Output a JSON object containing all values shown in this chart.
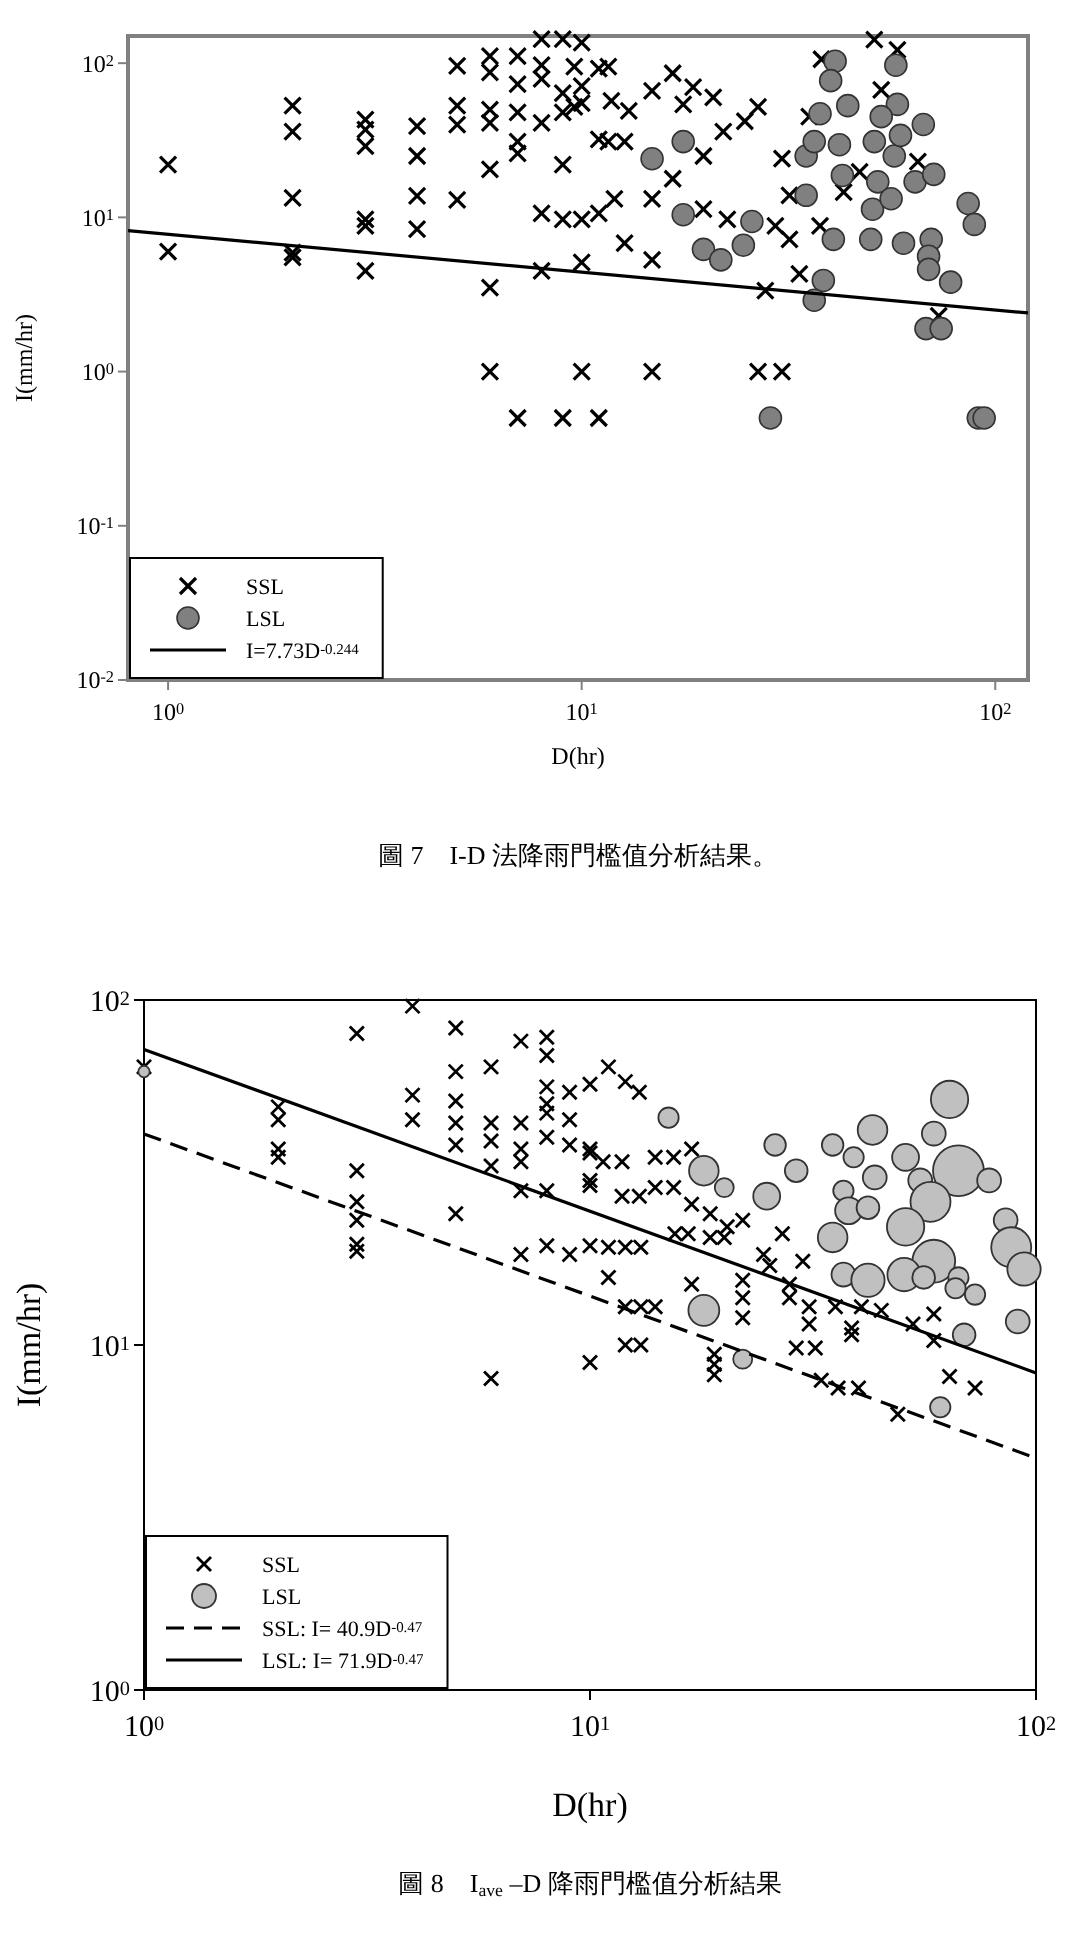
{
  "chart_data": [
    {
      "type": "scatter",
      "xlabel": "D(hr)",
      "ylabel": "I(mm/hr)",
      "log": "xy",
      "legend": "bottom left",
      "xlim": [
        0.8,
        120
      ],
      "ylim": [
        0.01,
        150
      ],
      "xticks": [
        {
          "value": 1,
          "label": "10$^{0}$"
        },
        {
          "value": 10,
          "label": "10$^{1}$"
        },
        {
          "value": 100,
          "label": "10$^{2}$"
        }
      ],
      "yticks": [
        {
          "value": 0.01,
          "label": "10$^{-2}$"
        },
        {
          "value": 0.1,
          "label": "10$^{-1}$"
        },
        {
          "value": 1,
          "label": "10$^{0}$"
        },
        {
          "value": 10,
          "label": "10$^{1}$"
        },
        {
          "value": 100,
          "label": "10$^{2}$"
        }
      ],
      "annotations": [
        "圖 7　I-D 法降雨門檻值分析結果。"
      ],
      "series": [
        {
          "name": "SSL",
          "marker": "cross",
          "color": "#000000",
          "x": [
            1,
            1,
            2,
            2,
            2,
            2,
            2,
            3,
            3,
            3,
            3,
            3,
            3,
            4,
            4,
            4,
            4,
            5,
            5,
            5,
            5,
            6,
            6,
            6,
            6,
            6,
            6,
            6,
            7,
            7,
            7,
            7,
            7,
            7,
            8,
            8,
            8,
            8,
            8,
            8,
            9,
            9,
            9,
            9,
            9,
            9,
            10,
            10,
            10,
            10,
            10,
            10,
            11,
            11,
            11,
            11,
            9.6,
            9.6,
            11.6,
            11.6,
            12.7,
            11.8,
            13,
            14.8,
            16.6,
            18.6,
            20.8,
            17.6,
            26.7,
            24.8,
            22,
            19.7,
            16.6,
            14.8,
            12,
            19.7,
            22.5,
            12.7,
            14.8,
            30.5,
            31.8,
            29.4,
            31.8,
            37.7,
            33.6,
            27.8,
            43,
            47,
            51,
            58,
            53,
            38,
            35.5,
            65,
            73,
            14.8,
            26.7,
            30.5
          ],
          "values": [
            22,
            6,
            53,
            36,
            13.4,
            5.9,
            5.5,
            43,
            37,
            29,
            9.7,
            8.8,
            4.5,
            39,
            25,
            13.8,
            8.4,
            96,
            53,
            40,
            13,
            111,
            87,
            50,
            41,
            20.5,
            3.5,
            1,
            111,
            73,
            48,
            31,
            26,
            0.5,
            143,
            97,
            79,
            41,
            10.6,
            4.5,
            143,
            64,
            48,
            22,
            9.7,
            0.5,
            136,
            71,
            55,
            9.7,
            5.1,
            1,
            92,
            32,
            10.6,
            0.5,
            95,
            52,
            95,
            31,
            31,
            57,
            49,
            66,
            86,
            70,
            60,
            54,
            52,
            42,
            36,
            25,
            17.8,
            13.2,
            13.2,
            11.3,
            9.7,
            6.8,
            5.3,
            24,
            13.9,
            8.8,
            7.2,
            8.8,
            4.3,
            3.35,
            14.6,
            19.7,
            142,
            122,
            67,
            106,
            45,
            23,
            2.3,
            1,
            1,
            1
          ]
        },
        {
          "name": "LSL",
          "marker": "circle",
          "color": "#808080",
          "x": [
            14.8,
            17.6,
            17.6,
            19.7,
            21.7,
            24.6,
            25.8,
            28.6,
            34.9,
            34.9,
            36.5,
            38.4,
            36.5,
            40.6,
            41,
            40,
            44,
            37.7,
            42,
            42.7,
            50,
            50.5,
            51,
            52,
            56,
            57,
            58,
            57.5,
            53,
            59,
            64,
            67,
            71,
            60,
            70,
            69,
            69,
            78,
            68,
            74,
            86,
            89,
            91,
            94
          ],
          "values": [
            24,
            31,
            10.4,
            6.2,
            5.3,
            6.6,
            9.4,
            0.5,
            25,
            13.9,
            31,
            3.9,
            2.9,
            7.2,
            103,
            77,
            53,
            47,
            29.6,
            18.7,
            7.2,
            11.3,
            31,
            17,
            13.2,
            25,
            54,
            97,
            45,
            34,
            17,
            40,
            19,
            6.8,
            7.2,
            5.6,
            4.6,
            3.8,
            1.9,
            1.9,
            12.3,
            9,
            0.5,
            0.5
          ]
        },
        {
          "name": "I=7.73D$^{-0.244}$",
          "type": "line",
          "line_style": "solid",
          "color": "#000000",
          "x": [
            0.8,
            120
          ],
          "values": [
            8.2,
            2.4
          ]
        }
      ]
    },
    {
      "type": "scatter",
      "xlabel": "D(hr)",
      "ylabel": "I(mm/hr)",
      "log": "xy",
      "legend": "bottom left",
      "xlim": [
        1,
        100
      ],
      "ylim": [
        1,
        100
      ],
      "xticks": [
        {
          "value": 1,
          "label": "10$^{0}$"
        },
        {
          "value": 10,
          "label": "10$^{1}$"
        },
        {
          "value": 100,
          "label": "10$^{2}$"
        }
      ],
      "yticks": [
        {
          "value": 1,
          "label": "10$^{0}$"
        },
        {
          "value": 10,
          "label": "10$^{1}$"
        },
        {
          "value": 100,
          "label": "10$^{2}$"
        }
      ],
      "annotations": [
        "圖 8　I$_{ave}$ –D 降雨門檻值分析結果"
      ],
      "series": [
        {
          "name": "SSL",
          "marker": "cross",
          "color": "#000000",
          "x": [
            1,
            2,
            2,
            2,
            2,
            3,
            3,
            3,
            3,
            3,
            3,
            4,
            4,
            4,
            5,
            5,
            5,
            5,
            5,
            5,
            6,
            6,
            6,
            6,
            6,
            7,
            7,
            7,
            7,
            7,
            7,
            8,
            8,
            8,
            8,
            8,
            8,
            8,
            8,
            9,
            9,
            9,
            9,
            10,
            10,
            10,
            10,
            10,
            11,
            12,
            12.9,
            10,
            10.7,
            11.8,
            10,
            11.8,
            12.9,
            11,
            12,
            13,
            11,
            12,
            13,
            14,
            12,
            13,
            14,
            15.4,
            14,
            15.4,
            16.9,
            16.9,
            16.9,
            15.5,
            16.6,
            18.6,
            20.3,
            22,
            18.6,
            20,
            22,
            22,
            22,
            19,
            19,
            19,
            27,
            24.5,
            25.3,
            30,
            28,
            28,
            29,
            32,
            31,
            31,
            35.5,
            38.6,
            40.6,
            38.6,
            33,
            36,
            40,
            45,
            53,
            59,
            59,
            64,
            73,
            49
          ],
          "values": [
            64,
            49,
            45,
            37,
            35,
            80,
            32,
            26,
            23,
            19.6,
            18.7,
            96,
            53,
            45,
            83,
            62,
            51,
            44,
            38,
            24,
            64,
            44,
            39,
            33,
            8,
            76,
            44,
            37,
            34,
            28,
            18.3,
            78,
            69,
            56,
            50,
            47,
            40,
            28,
            19.4,
            54,
            45,
            38,
            18.3,
            57,
            37,
            29,
            19.4,
            8.9,
            64,
            58,
            54,
            36,
            34,
            34,
            30,
            27,
            27,
            19.2,
            19.2,
            19.2,
            15.7,
            12.9,
            12.9,
            12.9,
            10,
            10,
            35,
            35,
            28.6,
            28.6,
            37,
            25.6,
            15,
            21,
            21,
            24,
            22,
            23,
            20.5,
            20.5,
            15.4,
            13.7,
            12,
            9.4,
            8.8,
            8.2,
            21,
            18.3,
            17,
            17.5,
            15,
            13.7,
            9.8,
            9.8,
            12.9,
            11.5,
            12.9,
            11.2,
            12.9,
            10.7,
            7.9,
            7.5,
            7.5,
            12.6,
            11.5,
            12.3,
            10.3,
            8.1,
            7.5,
            6.3
          ]
        },
        {
          "name": "LSL",
          "type": "bubble",
          "color": "#c0c0c0",
          "x": [
            1,
            15,
            18,
            20,
            24.9,
            26,
            29,
            18,
            22,
            35,
            39,
            43,
            35,
            37,
            38,
            42,
            43.5,
            37,
            42,
            51,
            55,
            59,
            64,
            67,
            58,
            51,
            59,
            50.6,
            56,
            67,
            73,
            66,
            78.5,
            85.5,
            88,
            94,
            91,
            69,
            61
          ],
          "values": [
            62,
            45.6,
            32,
            28.6,
            27,
            38,
            32,
            12.6,
            9.1,
            38,
            35,
            42,
            20.5,
            28,
            24.5,
            25,
            30.6,
            16,
            15.4,
            35,
            30,
            41,
            51.5,
            32,
            26,
            22,
            17.5,
            16,
            15.7,
            15.7,
            14,
            14.6,
            30,
            23,
            19.2,
            16.6,
            11.7,
            10.7,
            6.6
          ],
          "sizes": [
            0.05,
            0.16,
            0.34,
            0.14,
            0.28,
            0.18,
            0.2,
            0.37,
            0.14,
            0.18,
            0.16,
            0.34,
            0.34,
            0.16,
            0.28,
            0.2,
            0.22,
            0.22,
            0.43,
            0.28,
            0.22,
            0.22,
            0.54,
            1,
            0.62,
            0.54,
            0.71,
            0.43,
            0.2,
            0.16,
            0.16,
            0.16,
            0.22,
            0.22,
            0.62,
            0.43,
            0.22,
            0.2,
            0.16
          ]
        },
        {
          "name": "SSL: I= 40.9D$^{-0.47}$",
          "type": "line",
          "line_style": "dashed",
          "color": "#000000",
          "x": [
            1,
            100
          ],
          "values": [
            40.9,
            4.7
          ]
        },
        {
          "name": "LSL: I= 71.9D$^{-0.47}$",
          "type": "line",
          "line_style": "solid",
          "color": "#000000",
          "x": [
            1,
            100
          ],
          "values": [
            71.9,
            8.3
          ]
        }
      ]
    }
  ]
}
